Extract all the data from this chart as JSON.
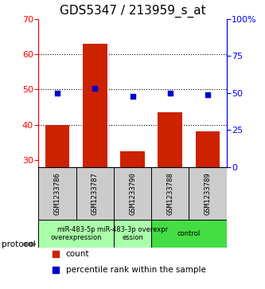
{
  "title": "GDS5347 / 213959_s_at",
  "samples": [
    "GSM1233786",
    "GSM1233787",
    "GSM1233790",
    "GSM1233788",
    "GSM1233789"
  ],
  "bar_values": [
    40.0,
    63.0,
    32.5,
    43.5,
    38.0
  ],
  "percentile_values": [
    50.0,
    53.0,
    47.5,
    50.0,
    49.0
  ],
  "bar_color": "#cc2200",
  "percentile_color": "#0000cc",
  "ylim_left": [
    28,
    70
  ],
  "ylim_right": [
    0,
    100
  ],
  "yticks_left": [
    30,
    40,
    50,
    60,
    70
  ],
  "yticks_right": [
    0,
    25,
    50,
    75,
    100
  ],
  "ytick_labels_right": [
    "0",
    "25",
    "50",
    "75",
    "100%"
  ],
  "grid_values": [
    40,
    50,
    60
  ],
  "protocols": [
    {
      "label": "miR-483-5p\noverexpression",
      "indices": [
        0,
        1
      ],
      "color": "#aaffaa"
    },
    {
      "label": "miR-483-3p overexpr\nession",
      "indices": [
        2
      ],
      "color": "#aaffaa"
    },
    {
      "label": "control",
      "indices": [
        3,
        4
      ],
      "color": "#44dd44"
    }
  ],
  "protocol_label": "protocol",
  "legend_bar_label": "count",
  "legend_percentile_label": "percentile rank within the sample",
  "background_color": "#ffffff",
  "plot_bg_color": "#ffffff",
  "sample_label_bg": "#cccccc",
  "title_fontsize": 11,
  "tick_fontsize": 8,
  "sample_fontsize": 6.5,
  "protocol_fontsize": 6,
  "legend_fontsize": 7.5
}
